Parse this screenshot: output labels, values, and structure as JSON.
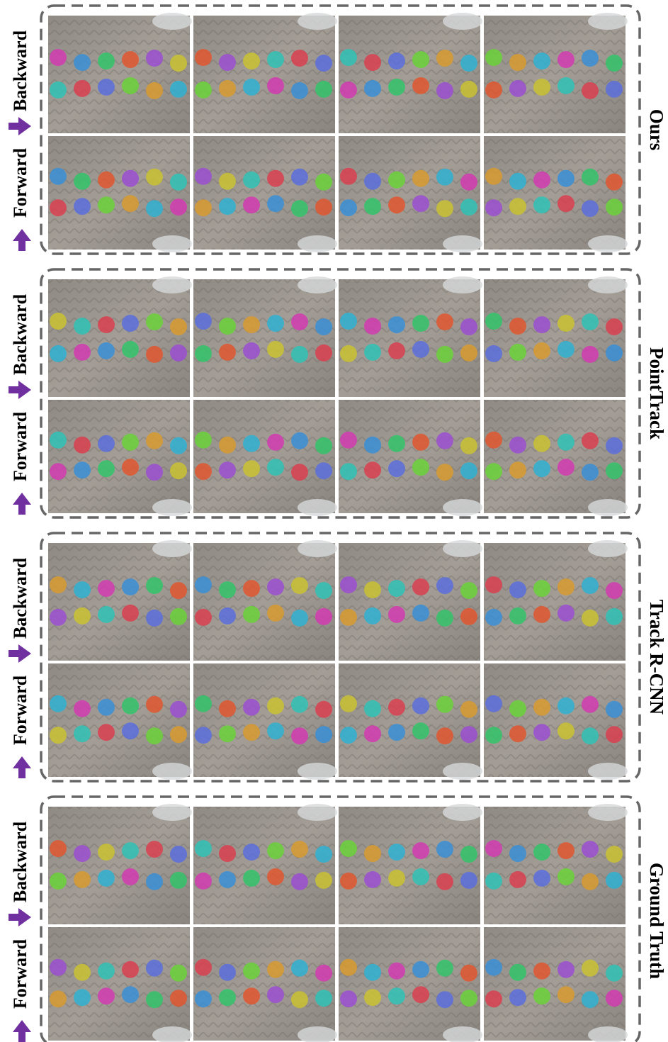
{
  "panels": [
    {
      "label": "Ours",
      "rows": [
        "Backward",
        "Forward"
      ]
    },
    {
      "label": "PointTrack",
      "rows": [
        "Backward",
        "Forward"
      ]
    },
    {
      "label": "Track R-CNN",
      "rows": [
        "Backward",
        "Forward"
      ]
    },
    {
      "label": "Ground Truth",
      "rows": [
        "Backward",
        "Forward"
      ]
    }
  ]
}
